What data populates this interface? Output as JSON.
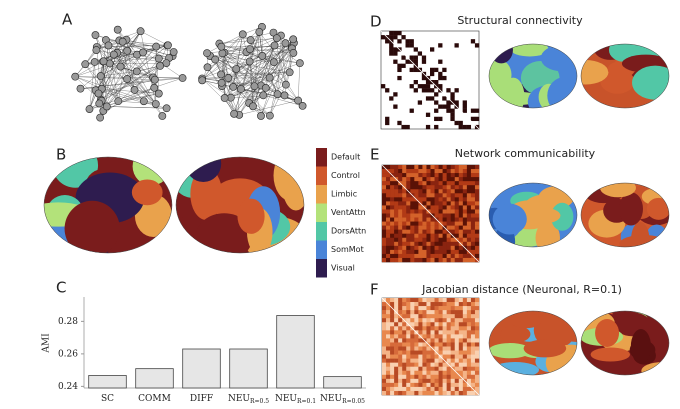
{
  "panel_labels": [
    "A",
    "B",
    "C",
    "D",
    "E",
    "F"
  ],
  "panel_titles": [
    "Structural connectivity",
    "Network communicability",
    "Jacobian distance (Neuronal, R=0.1)"
  ],
  "legend": {
    "items": [
      {
        "label": "Default",
        "color": "#7a1c1c"
      },
      {
        "label": "Control",
        "color": "#d0582c"
      },
      {
        "label": "Limbic",
        "color": "#e9a24c"
      },
      {
        "label": "VentAttn",
        "color": "#b3e27a"
      },
      {
        "label": "DorsAttn",
        "color": "#52c7a6"
      },
      {
        "label": "SomMot",
        "color": "#4a84d8"
      },
      {
        "label": "Visual",
        "color": "#2e1c4f"
      }
    ]
  },
  "chart_data": {
    "type": "bar",
    "y_label": "AMI",
    "categories": [
      "SC",
      "COMM",
      "DIFF",
      "NEU",
      "NEU",
      "NEU"
    ],
    "category_subscripts": {
      "3": "R=0.5",
      "4": "R=0.1",
      "5": "R=0.05"
    },
    "values": [
      0.2467,
      0.2509,
      0.263,
      0.263,
      0.2836,
      0.246
    ],
    "color": "#e6e6e6",
    "ylim": [
      0.239,
      0.295
    ],
    "yticks": [
      0.24,
      0.26,
      0.28
    ]
  }
}
